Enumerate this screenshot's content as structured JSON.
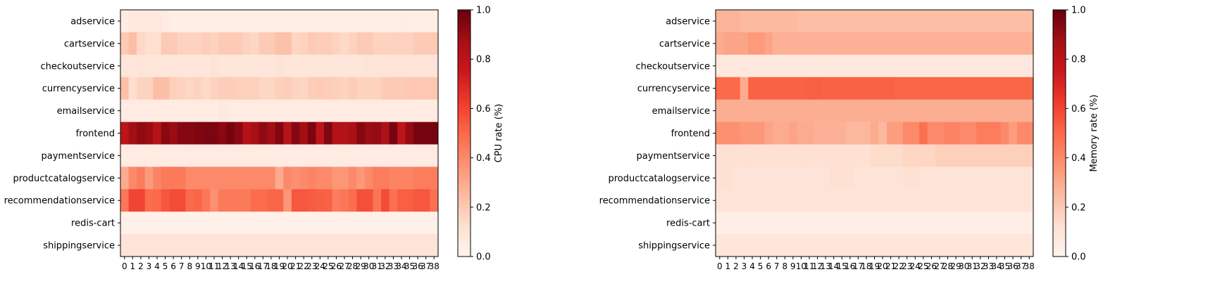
{
  "chart_data": [
    {
      "type": "heatmap",
      "title": "",
      "xlabel": "",
      "ylabel": "",
      "colorbar_label": "CPU rate (%)",
      "colormap": "Reds",
      "value_range": [
        0,
        1
      ],
      "colorbar_ticks": [
        "0.0",
        "0.2",
        "0.4",
        "0.6",
        "0.8",
        "1.0"
      ],
      "services": [
        "adservice",
        "cartservice",
        "checkoutservice",
        "currencyservice",
        "emailservice",
        "frontend",
        "paymentservice",
        "productcatalogservice",
        "recommendationservice",
        "redis-cart",
        "shippingservice"
      ],
      "x_ticks": [
        "0",
        "1",
        "2",
        "3",
        "4",
        "5",
        "6",
        "7",
        "8",
        "9",
        "10",
        "11",
        "12",
        "13",
        "14",
        "15",
        "16",
        "17",
        "18",
        "19",
        "20",
        "21",
        "22",
        "23",
        "24",
        "25",
        "26",
        "27",
        "28",
        "29",
        "30",
        "31",
        "32",
        "33",
        "34",
        "35",
        "36",
        "37",
        "38"
      ],
      "values": [
        [
          0.05,
          0.07,
          0.08,
          0.07,
          0.08,
          0.06,
          0.04,
          0.04,
          0.04,
          0.04,
          0.04,
          0.04,
          0.04,
          0.04,
          0.04,
          0.04,
          0.04,
          0.04,
          0.04,
          0.04,
          0.04,
          0.04,
          0.04,
          0.04,
          0.04,
          0.04,
          0.04,
          0.04,
          0.04,
          0.04,
          0.04,
          0.04,
          0.04,
          0.04,
          0.05,
          0.04,
          0.04,
          0.04,
          0.04
        ],
        [
          0.2,
          0.24,
          0.15,
          0.13,
          0.13,
          0.2,
          0.2,
          0.17,
          0.17,
          0.17,
          0.19,
          0.17,
          0.2,
          0.2,
          0.2,
          0.17,
          0.16,
          0.2,
          0.2,
          0.23,
          0.23,
          0.16,
          0.17,
          0.2,
          0.19,
          0.19,
          0.17,
          0.15,
          0.17,
          0.2,
          0.2,
          0.17,
          0.17,
          0.17,
          0.17,
          0.17,
          0.2,
          0.2,
          0.2
        ],
        [
          0.09,
          0.09,
          0.1,
          0.09,
          0.09,
          0.09,
          0.09,
          0.09,
          0.09,
          0.09,
          0.09,
          0.1,
          0.09,
          0.09,
          0.09,
          0.09,
          0.09,
          0.09,
          0.09,
          0.1,
          0.09,
          0.09,
          0.09,
          0.09,
          0.09,
          0.09,
          0.09,
          0.09,
          0.09,
          0.09,
          0.1,
          0.1,
          0.1,
          0.1,
          0.11,
          0.1,
          0.1,
          0.1,
          0.1
        ],
        [
          0.23,
          0.13,
          0.17,
          0.17,
          0.24,
          0.24,
          0.18,
          0.17,
          0.16,
          0.17,
          0.15,
          0.17,
          0.19,
          0.19,
          0.18,
          0.18,
          0.18,
          0.16,
          0.16,
          0.18,
          0.19,
          0.17,
          0.16,
          0.19,
          0.2,
          0.19,
          0.18,
          0.17,
          0.19,
          0.17,
          0.17,
          0.17,
          0.2,
          0.2,
          0.2,
          0.21,
          0.21,
          0.21,
          0.21
        ],
        [
          0.06,
          0.06,
          0.06,
          0.06,
          0.06,
          0.06,
          0.06,
          0.06,
          0.06,
          0.06,
          0.06,
          0.06,
          0.07,
          0.06,
          0.06,
          0.06,
          0.06,
          0.06,
          0.06,
          0.06,
          0.06,
          0.06,
          0.06,
          0.06,
          0.06,
          0.06,
          0.06,
          0.06,
          0.06,
          0.06,
          0.06,
          0.06,
          0.06,
          0.06,
          0.06,
          0.06,
          0.06,
          0.06,
          0.06
        ],
        [
          0.8,
          0.88,
          0.92,
          0.9,
          0.82,
          0.93,
          0.9,
          0.94,
          0.94,
          0.95,
          0.96,
          0.96,
          0.93,
          0.97,
          0.93,
          0.83,
          0.87,
          0.92,
          0.88,
          0.95,
          0.82,
          0.94,
          0.88,
          0.96,
          0.8,
          0.95,
          0.83,
          0.83,
          0.86,
          0.94,
          0.9,
          0.91,
          0.85,
          0.97,
          0.8,
          0.91,
          0.97,
          0.97,
          0.97
        ],
        [
          0.06,
          0.06,
          0.06,
          0.06,
          0.06,
          0.06,
          0.06,
          0.06,
          0.06,
          0.06,
          0.06,
          0.06,
          0.06,
          0.06,
          0.06,
          0.06,
          0.06,
          0.06,
          0.06,
          0.06,
          0.06,
          0.06,
          0.06,
          0.06,
          0.06,
          0.06,
          0.06,
          0.06,
          0.06,
          0.06,
          0.06,
          0.06,
          0.06,
          0.06,
          0.06,
          0.06,
          0.06,
          0.06,
          0.06
        ],
        [
          0.3,
          0.4,
          0.44,
          0.35,
          0.42,
          0.45,
          0.45,
          0.45,
          0.4,
          0.4,
          0.4,
          0.4,
          0.4,
          0.4,
          0.4,
          0.4,
          0.4,
          0.4,
          0.4,
          0.3,
          0.4,
          0.38,
          0.4,
          0.42,
          0.4,
          0.4,
          0.36,
          0.36,
          0.4,
          0.36,
          0.4,
          0.44,
          0.44,
          0.42,
          0.42,
          0.42,
          0.44,
          0.44,
          0.44
        ],
        [
          0.46,
          0.6,
          0.6,
          0.49,
          0.5,
          0.55,
          0.58,
          0.58,
          0.5,
          0.51,
          0.46,
          0.38,
          0.45,
          0.45,
          0.45,
          0.45,
          0.49,
          0.49,
          0.51,
          0.51,
          0.36,
          0.55,
          0.55,
          0.54,
          0.53,
          0.52,
          0.44,
          0.46,
          0.49,
          0.57,
          0.57,
          0.47,
          0.58,
          0.48,
          0.53,
          0.53,
          0.55,
          0.55,
          0.48
        ],
        [
          0.03,
          0.03,
          0.03,
          0.03,
          0.03,
          0.03,
          0.03,
          0.03,
          0.03,
          0.03,
          0.03,
          0.03,
          0.03,
          0.03,
          0.03,
          0.03,
          0.03,
          0.03,
          0.03,
          0.03,
          0.03,
          0.03,
          0.03,
          0.03,
          0.03,
          0.03,
          0.03,
          0.03,
          0.03,
          0.03,
          0.03,
          0.03,
          0.03,
          0.03,
          0.03,
          0.03,
          0.03,
          0.03,
          0.03
        ],
        [
          0.1,
          0.1,
          0.1,
          0.1,
          0.1,
          0.1,
          0.1,
          0.1,
          0.1,
          0.1,
          0.1,
          0.1,
          0.1,
          0.1,
          0.1,
          0.1,
          0.1,
          0.1,
          0.1,
          0.1,
          0.1,
          0.1,
          0.1,
          0.1,
          0.1,
          0.1,
          0.1,
          0.1,
          0.1,
          0.1,
          0.1,
          0.1,
          0.1,
          0.1,
          0.1,
          0.1,
          0.1,
          0.1,
          0.1
        ]
      ]
    },
    {
      "type": "heatmap",
      "title": "",
      "xlabel": "",
      "ylabel": "",
      "colorbar_label": "Memory rate (%)",
      "colormap": "Reds",
      "value_range": [
        0,
        1
      ],
      "colorbar_ticks": [
        "0.0",
        "0.2",
        "0.4",
        "0.6",
        "0.8",
        "1.0"
      ],
      "services": [
        "adservice",
        "cartservice",
        "checkoutservice",
        "currencyservice",
        "emailservice",
        "frontend",
        "paymentservice",
        "productcatalogservice",
        "recommendationservice",
        "redis-cart",
        "shippingservice"
      ],
      "x_ticks": [
        "0",
        "1",
        "2",
        "3",
        "4",
        "5",
        "6",
        "7",
        "8",
        "9",
        "10",
        "11",
        "12",
        "13",
        "14",
        "15",
        "16",
        "17",
        "18",
        "19",
        "20",
        "21",
        "22",
        "23",
        "24",
        "25",
        "26",
        "27",
        "28",
        "29",
        "30",
        "31",
        "32",
        "33",
        "34",
        "35",
        "36",
        "37",
        "38"
      ],
      "values": [
        [
          0.27,
          0.27,
          0.27,
          0.25,
          0.25,
          0.25,
          0.25,
          0.25,
          0.25,
          0.25,
          0.24,
          0.24,
          0.24,
          0.24,
          0.24,
          0.24,
          0.24,
          0.24,
          0.24,
          0.24,
          0.24,
          0.24,
          0.24,
          0.24,
          0.24,
          0.24,
          0.24,
          0.24,
          0.24,
          0.24,
          0.24,
          0.24,
          0.24,
          0.24,
          0.24,
          0.24,
          0.24,
          0.24,
          0.24
        ],
        [
          0.3,
          0.32,
          0.32,
          0.32,
          0.35,
          0.35,
          0.32,
          0.28,
          0.28,
          0.28,
          0.28,
          0.28,
          0.28,
          0.28,
          0.28,
          0.28,
          0.28,
          0.28,
          0.28,
          0.28,
          0.28,
          0.28,
          0.28,
          0.28,
          0.28,
          0.28,
          0.28,
          0.28,
          0.28,
          0.28,
          0.28,
          0.28,
          0.28,
          0.28,
          0.28,
          0.28,
          0.28,
          0.28,
          0.28
        ],
        [
          0.08,
          0.08,
          0.08,
          0.08,
          0.08,
          0.08,
          0.08,
          0.08,
          0.08,
          0.08,
          0.08,
          0.08,
          0.08,
          0.08,
          0.08,
          0.08,
          0.08,
          0.08,
          0.08,
          0.08,
          0.08,
          0.08,
          0.08,
          0.08,
          0.08,
          0.08,
          0.08,
          0.08,
          0.08,
          0.08,
          0.08,
          0.08,
          0.08,
          0.08,
          0.08,
          0.08,
          0.08,
          0.08,
          0.08
        ],
        [
          0.5,
          0.5,
          0.5,
          0.3,
          0.52,
          0.52,
          0.52,
          0.52,
          0.52,
          0.52,
          0.52,
          0.53,
          0.53,
          0.52,
          0.52,
          0.52,
          0.52,
          0.52,
          0.52,
          0.52,
          0.52,
          0.52,
          0.51,
          0.51,
          0.51,
          0.51,
          0.51,
          0.51,
          0.51,
          0.51,
          0.51,
          0.51,
          0.51,
          0.51,
          0.51,
          0.51,
          0.51,
          0.51,
          0.51
        ],
        [
          0.29,
          0.29,
          0.29,
          0.29,
          0.29,
          0.29,
          0.29,
          0.29,
          0.29,
          0.29,
          0.29,
          0.29,
          0.29,
          0.29,
          0.29,
          0.29,
          0.29,
          0.29,
          0.29,
          0.29,
          0.29,
          0.29,
          0.29,
          0.29,
          0.29,
          0.29,
          0.29,
          0.29,
          0.29,
          0.29,
          0.29,
          0.29,
          0.29,
          0.29,
          0.29,
          0.29,
          0.29,
          0.29,
          0.29
        ],
        [
          0.38,
          0.38,
          0.38,
          0.36,
          0.36,
          0.36,
          0.32,
          0.3,
          0.3,
          0.32,
          0.3,
          0.3,
          0.28,
          0.28,
          0.28,
          0.28,
          0.26,
          0.26,
          0.26,
          0.3,
          0.26,
          0.34,
          0.34,
          0.4,
          0.4,
          0.48,
          0.4,
          0.4,
          0.42,
          0.42,
          0.4,
          0.4,
          0.44,
          0.44,
          0.44,
          0.4,
          0.34,
          0.4,
          0.4
        ],
        [
          0.12,
          0.12,
          0.12,
          0.12,
          0.12,
          0.12,
          0.12,
          0.12,
          0.12,
          0.12,
          0.12,
          0.12,
          0.12,
          0.12,
          0.12,
          0.12,
          0.12,
          0.12,
          0.12,
          0.14,
          0.14,
          0.14,
          0.14,
          0.16,
          0.16,
          0.16,
          0.16,
          0.18,
          0.18,
          0.18,
          0.18,
          0.18,
          0.18,
          0.18,
          0.18,
          0.18,
          0.18,
          0.18,
          0.18
        ],
        [
          0.12,
          0.12,
          0.1,
          0.1,
          0.1,
          0.1,
          0.1,
          0.1,
          0.1,
          0.1,
          0.1,
          0.1,
          0.1,
          0.1,
          0.12,
          0.12,
          0.12,
          0.1,
          0.1,
          0.1,
          0.1,
          0.1,
          0.1,
          0.12,
          0.12,
          0.1,
          0.1,
          0.1,
          0.1,
          0.1,
          0.1,
          0.1,
          0.1,
          0.1,
          0.1,
          0.1,
          0.1,
          0.1,
          0.1
        ],
        [
          0.1,
          0.1,
          0.1,
          0.1,
          0.1,
          0.1,
          0.1,
          0.1,
          0.1,
          0.1,
          0.1,
          0.1,
          0.1,
          0.1,
          0.1,
          0.1,
          0.1,
          0.1,
          0.1,
          0.1,
          0.1,
          0.1,
          0.1,
          0.1,
          0.1,
          0.1,
          0.1,
          0.1,
          0.1,
          0.1,
          0.1,
          0.1,
          0.1,
          0.1,
          0.1,
          0.1,
          0.1,
          0.1,
          0.1
        ],
        [
          0.04,
          0.04,
          0.04,
          0.04,
          0.04,
          0.04,
          0.04,
          0.04,
          0.04,
          0.04,
          0.04,
          0.04,
          0.04,
          0.04,
          0.04,
          0.04,
          0.04,
          0.04,
          0.04,
          0.04,
          0.04,
          0.04,
          0.04,
          0.04,
          0.04,
          0.04,
          0.04,
          0.04,
          0.04,
          0.04,
          0.04,
          0.04,
          0.04,
          0.04,
          0.04,
          0.04,
          0.04,
          0.04,
          0.04
        ],
        [
          0.09,
          0.09,
          0.09,
          0.09,
          0.09,
          0.09,
          0.09,
          0.09,
          0.09,
          0.09,
          0.09,
          0.09,
          0.09,
          0.09,
          0.09,
          0.09,
          0.09,
          0.09,
          0.09,
          0.09,
          0.09,
          0.09,
          0.09,
          0.09,
          0.09,
          0.09,
          0.09,
          0.09,
          0.09,
          0.09,
          0.09,
          0.09,
          0.09,
          0.09,
          0.09,
          0.09,
          0.09,
          0.09,
          0.09
        ]
      ]
    }
  ]
}
